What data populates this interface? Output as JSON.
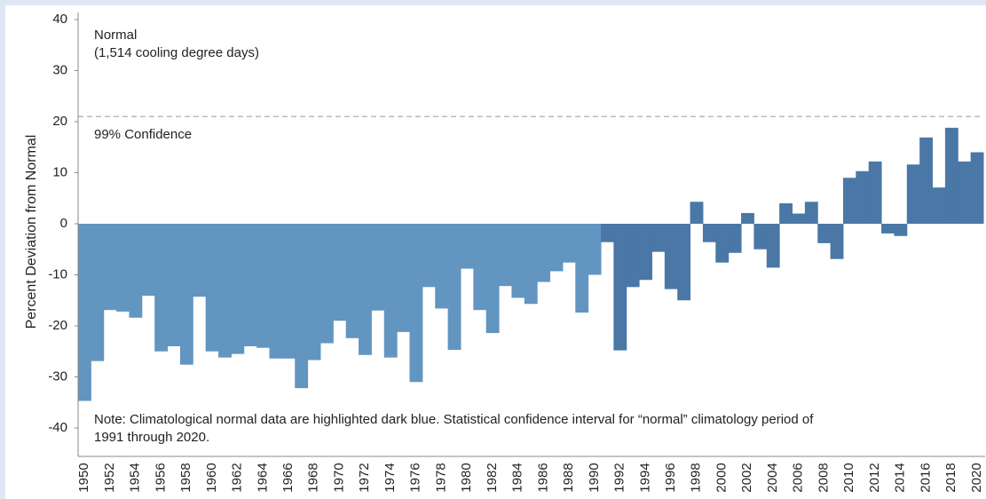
{
  "chart_data": {
    "type": "bar",
    "y_label": "Percent Deviation from Normal",
    "annotation_normal": [
      "Normal",
      "(1,514 cooling degree days)"
    ],
    "reference_line": {
      "value": 21,
      "label": "99% Confidence"
    },
    "note": [
      "Note: Climatological normal data are highlighted dark blue. Statistical confidence interval for “normal” climatology period of",
      "1991 through 2020."
    ],
    "categories": [
      "1950",
      null,
      "1952",
      null,
      "1954",
      null,
      "1956",
      null,
      "1958",
      null,
      "1960",
      null,
      "1962",
      null,
      "1964",
      null,
      "1966",
      null,
      "1968",
      null,
      "1970",
      null,
      "1972",
      null,
      "1974",
      null,
      "1976",
      null,
      "1978",
      null,
      "1980",
      null,
      "1982",
      null,
      "1984",
      null,
      "1986",
      null,
      "1988",
      null,
      "1990",
      null,
      "1992",
      null,
      "1994",
      null,
      "1996",
      null,
      "1998",
      null,
      "2000",
      null,
      "2002",
      null,
      "2004",
      null,
      "2006",
      null,
      "2008",
      null,
      "2010",
      null,
      "2012",
      null,
      "2014",
      null,
      "2016",
      null,
      "2018",
      null,
      "2020"
    ],
    "values": [
      -34.7,
      -26.9,
      -16.9,
      -17.2,
      -18.4,
      -14.1,
      -25,
      -24,
      -27.6,
      -14.3,
      -25,
      -26.2,
      -25.5,
      -24,
      -24.3,
      -26.4,
      -26.4,
      -32.2,
      -26.7,
      -23.4,
      -19,
      -22.4,
      -25.7,
      -17,
      -26.2,
      -21.2,
      -31,
      -12.4,
      -16.6,
      -24.7,
      -8.8,
      -16.9,
      -21.4,
      -12.2,
      -14.5,
      -15.7,
      -11.4,
      -9.3,
      -7.6,
      -17.4,
      -10,
      -3.6,
      -24.8,
      -12.4,
      -11,
      -5.5,
      -12.8,
      -15,
      4.3,
      -3.6,
      -7.6,
      -5.7,
      2.1,
      -5,
      -8.6,
      4,
      2,
      4.3,
      -3.8,
      -6.9,
      9,
      10.3,
      12.2,
      -1.9,
      -2.4,
      11.6,
      16.9,
      7.1,
      18.8,
      12.2,
      14
    ],
    "colors": [
      "#6295c0",
      "#6295c0",
      "#6295c0",
      "#6295c0",
      "#6295c0",
      "#6295c0",
      "#6295c0",
      "#6295c0",
      "#6295c0",
      "#6295c0",
      "#6295c0",
      "#6295c0",
      "#6295c0",
      "#6295c0",
      "#6295c0",
      "#6295c0",
      "#6295c0",
      "#6295c0",
      "#6295c0",
      "#6295c0",
      "#6295c0",
      "#6295c0",
      "#6295c0",
      "#6295c0",
      "#6295c0",
      "#6295c0",
      "#6295c0",
      "#6295c0",
      "#6295c0",
      "#6295c0",
      "#6295c0",
      "#6295c0",
      "#6295c0",
      "#6295c0",
      "#6295c0",
      "#6295c0",
      "#6295c0",
      "#6295c0",
      "#6295c0",
      "#6295c0",
      "#6295c0",
      "#4a77a6",
      "#4a77a6",
      "#4a77a6",
      "#4a77a6",
      "#4a77a6",
      "#4a77a6",
      "#4a77a6",
      "#4a77a6",
      "#4a77a6",
      "#4a77a6",
      "#4a77a6",
      "#4a77a6",
      "#4a77a6",
      "#4a77a6",
      "#4a77a6",
      "#4a77a6",
      "#4a77a6",
      "#4a77a6",
      "#4a77a6",
      "#4a77a6",
      "#4a77a6",
      "#4a77a6",
      "#4a77a6",
      "#4a77a6",
      "#4a77a6",
      "#4a77a6",
      "#4a77a6",
      "#4a77a6",
      "#4a77a6",
      "#4a77a6"
    ],
    "ylim": [
      -40,
      40
    ],
    "yticks": [
      -40,
      -30,
      -20,
      -10,
      0,
      10,
      20,
      30,
      40
    ]
  }
}
